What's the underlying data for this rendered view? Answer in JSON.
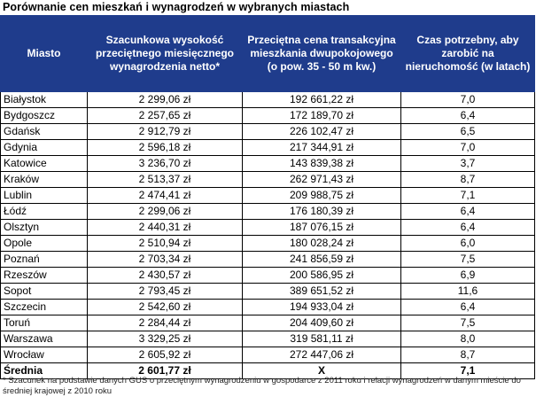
{
  "title": "Porównanie cen mieszkań i wynagrodzeń w wybranych miastach",
  "header": {
    "col1": "Miasto",
    "col2": "Szacunkowa wysokość przeciętnego miesięcznego wynagrodzenia netto*",
    "col3": "Przeciętna cena transakcyjna mieszkania dwupokojowego (o pow. 35 - 50 m kw.)",
    "col4": "Czas potrzebny, aby zarobić na nieruchomość (w latach)"
  },
  "rows": [
    {
      "city": "Białystok",
      "salary": "2 299,06 zł",
      "price": "192 661,22 zł",
      "years": "7,0"
    },
    {
      "city": "Bydgoszcz",
      "salary": "2 257,65 zł",
      "price": "172 189,70 zł",
      "years": "6,4"
    },
    {
      "city": "Gdańsk",
      "salary": "2 912,79 zł",
      "price": "226 102,47 zł",
      "years": "6,5"
    },
    {
      "city": "Gdynia",
      "salary": "2 596,18 zł",
      "price": "217 344,91 zł",
      "years": "7,0"
    },
    {
      "city": "Katowice",
      "salary": "3 236,70 zł",
      "price": "143 839,38 zł",
      "years": "3,7"
    },
    {
      "city": "Kraków",
      "salary": "2 513,37 zł",
      "price": "262 971,43 zł",
      "years": "8,7"
    },
    {
      "city": "Lublin",
      "salary": "2 474,41 zł",
      "price": "209 988,75 zł",
      "years": "7,1"
    },
    {
      "city": "Łódź",
      "salary": "2 299,06 zł",
      "price": "176 180,39 zł",
      "years": "6,4"
    },
    {
      "city": "Olsztyn",
      "salary": "2 440,31 zł",
      "price": "187 076,15 zł",
      "years": "6,4"
    },
    {
      "city": "Opole",
      "salary": "2 510,94 zł",
      "price": "180 028,24 zł",
      "years": "6,0"
    },
    {
      "city": "Poznań",
      "salary": "2 703,34 zł",
      "price": "241 856,59 zł",
      "years": "7,5"
    },
    {
      "city": "Rzeszów",
      "salary": "2 430,57 zł",
      "price": "200 586,95 zł",
      "years": "6,9"
    },
    {
      "city": "Sopot",
      "salary": "2 793,45 zł",
      "price": "389 651,52 zł",
      "years": "11,6"
    },
    {
      "city": "Szczecin",
      "salary": "2 542,60 zł",
      "price": "194 933,04 zł",
      "years": "6,4"
    },
    {
      "city": "Toruń",
      "salary": "2 284,44 zł",
      "price": "204 409,60 zł",
      "years": "7,5"
    },
    {
      "city": "Warszawa",
      "salary": "3 329,25 zł",
      "price": "319 581,11 zł",
      "years": "8,0"
    },
    {
      "city": "Wrocław",
      "salary": "2 605,92 zł",
      "price": "272 447,06 zł",
      "years": "8,7"
    }
  ],
  "average": {
    "city": "Średnia",
    "salary": "2 601,77 zł",
    "price": "X",
    "years": "7,1"
  },
  "footnote": "* Szacunek na podstawie danych GUS o przeciętnym wynagrodzeniu w gospodarce z 2011 roku i relacji wynagrodzeń w danym mieście do średniej krajowej z 2010 roku",
  "colors": {
    "header_bg": "#1f3c8c",
    "header_text": "#ffffff"
  }
}
